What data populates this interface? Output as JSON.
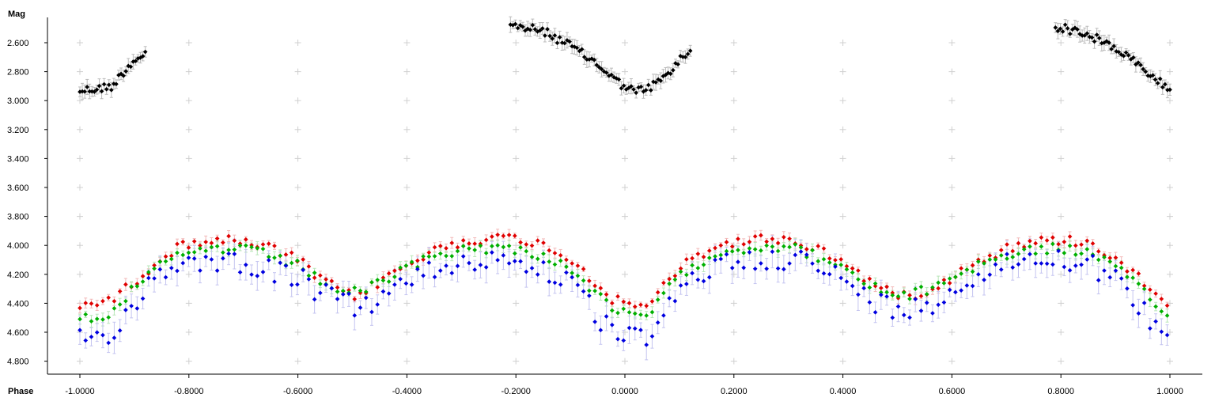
{
  "chart_data": {
    "type": "scatter",
    "title": "",
    "xlabel": "Phase",
    "ylabel": "Mag",
    "xlim": [
      -1.06,
      1.06
    ],
    "ylim": [
      4.9,
      2.47
    ],
    "y_inverted": true,
    "x_ticks": [
      -1.0,
      -0.8,
      -0.6,
      -0.4,
      -0.2,
      0.0,
      0.2,
      0.4,
      0.6,
      0.8,
      1.0
    ],
    "x_tick_labels": [
      "-1.0000",
      "-0.8000",
      "-0.6000",
      "-0.4000",
      "-0.2000",
      "0.0000",
      "0.2000",
      "0.4000",
      "0.6000",
      "0.8000",
      "1.0000"
    ],
    "y_ticks": [
      2.6,
      2.8,
      3.0,
      3.2,
      3.4,
      3.6,
      3.8,
      4.0,
      4.2,
      4.4,
      4.6,
      4.8
    ],
    "y_tick_labels": [
      "2.600",
      "2.800",
      "3.000",
      "3.200",
      "3.400",
      "3.600",
      "3.800",
      "4.000",
      "4.200",
      "4.400",
      "4.600",
      "4.800"
    ],
    "grid": "cross-markers",
    "legend": "none",
    "series": [
      {
        "color": "#000000",
        "error_color": "#bbbbbb",
        "error_bar": 0.04,
        "segments": [
          {
            "x_range": [
              -1.0,
              -0.88
            ],
            "points": [
              [
                -1.0,
                2.93
              ],
              [
                -0.97,
                2.92
              ],
              [
                -0.94,
                2.9
              ],
              [
                -0.92,
                2.8
              ],
              [
                -0.9,
                2.72
              ],
              [
                -0.88,
                2.67
              ]
            ]
          },
          {
            "x_range": [
              -0.21,
              0.12
            ],
            "points": [
              [
                -0.21,
                2.48
              ],
              [
                -0.15,
                2.52
              ],
              [
                -0.1,
                2.62
              ],
              [
                -0.05,
                2.75
              ],
              [
                -0.01,
                2.88
              ],
              [
                0.02,
                2.94
              ],
              [
                0.05,
                2.9
              ],
              [
                0.08,
                2.82
              ],
              [
                0.1,
                2.72
              ],
              [
                0.12,
                2.66
              ]
            ]
          },
          {
            "x_range": [
              0.79,
              1.0
            ],
            "points": [
              [
                0.79,
                2.49
              ],
              [
                0.83,
                2.52
              ],
              [
                0.87,
                2.58
              ],
              [
                0.91,
                2.66
              ],
              [
                0.95,
                2.78
              ],
              [
                0.98,
                2.87
              ],
              [
                1.0,
                2.93
              ]
            ]
          }
        ]
      },
      {
        "color": "#e00000",
        "error_color": "#f2b8b8",
        "error_bar": 0.03,
        "points": [
          [
            -1.0,
            4.4
          ],
          [
            -0.95,
            4.4
          ],
          [
            -0.9,
            4.25
          ],
          [
            -0.85,
            4.08
          ],
          [
            -0.8,
            3.98
          ],
          [
            -0.75,
            3.96
          ],
          [
            -0.7,
            3.98
          ],
          [
            -0.65,
            4.02
          ],
          [
            -0.6,
            4.1
          ],
          [
            -0.57,
            4.2
          ],
          [
            -0.53,
            4.3
          ],
          [
            -0.5,
            4.35
          ],
          [
            -0.47,
            4.3
          ],
          [
            -0.43,
            4.2
          ],
          [
            -0.38,
            4.1
          ],
          [
            -0.33,
            4.0
          ],
          [
            -0.28,
            3.96
          ],
          [
            -0.22,
            3.95
          ],
          [
            -0.17,
            3.97
          ],
          [
            -0.12,
            4.05
          ],
          [
            -0.08,
            4.15
          ],
          [
            -0.05,
            4.28
          ],
          [
            -0.02,
            4.38
          ],
          [
            0.02,
            4.42
          ],
          [
            0.05,
            4.38
          ],
          [
            0.08,
            4.25
          ],
          [
            0.12,
            4.1
          ],
          [
            0.17,
            4.0
          ],
          [
            0.22,
            3.97
          ],
          [
            0.27,
            3.95
          ],
          [
            0.32,
            3.98
          ],
          [
            0.37,
            4.05
          ],
          [
            0.4,
            4.12
          ],
          [
            0.44,
            4.22
          ],
          [
            0.48,
            4.32
          ],
          [
            0.52,
            4.35
          ],
          [
            0.56,
            4.3
          ],
          [
            0.6,
            4.22
          ],
          [
            0.65,
            4.1
          ],
          [
            0.7,
            4.02
          ],
          [
            0.75,
            3.98
          ],
          [
            0.8,
            3.96
          ],
          [
            0.85,
            3.98
          ],
          [
            0.9,
            4.08
          ],
          [
            0.95,
            4.25
          ],
          [
            1.0,
            4.4
          ]
        ]
      },
      {
        "color": "#00b000",
        "error_color": "#b8e6b8",
        "error_bar": 0.035,
        "points": [
          [
            -1.0,
            4.5
          ],
          [
            -0.95,
            4.48
          ],
          [
            -0.9,
            4.3
          ],
          [
            -0.85,
            4.13
          ],
          [
            -0.8,
            4.05
          ],
          [
            -0.75,
            4.02
          ],
          [
            -0.7,
            4.03
          ],
          [
            -0.65,
            4.07
          ],
          [
            -0.6,
            4.14
          ],
          [
            -0.57,
            4.22
          ],
          [
            -0.53,
            4.3
          ],
          [
            -0.5,
            4.33
          ],
          [
            -0.47,
            4.3
          ],
          [
            -0.43,
            4.22
          ],
          [
            -0.38,
            4.12
          ],
          [
            -0.33,
            4.05
          ],
          [
            -0.28,
            4.02
          ],
          [
            -0.22,
            4.02
          ],
          [
            -0.17,
            4.05
          ],
          [
            -0.12,
            4.12
          ],
          [
            -0.08,
            4.22
          ],
          [
            -0.05,
            4.35
          ],
          [
            -0.02,
            4.45
          ],
          [
            0.02,
            4.5
          ],
          [
            0.05,
            4.45
          ],
          [
            0.08,
            4.3
          ],
          [
            0.12,
            4.15
          ],
          [
            0.17,
            4.05
          ],
          [
            0.22,
            4.02
          ],
          [
            0.27,
            4.0
          ],
          [
            0.32,
            4.03
          ],
          [
            0.37,
            4.1
          ],
          [
            0.4,
            4.17
          ],
          [
            0.44,
            4.26
          ],
          [
            0.48,
            4.33
          ],
          [
            0.52,
            4.35
          ],
          [
            0.56,
            4.3
          ],
          [
            0.6,
            4.22
          ],
          [
            0.65,
            4.13
          ],
          [
            0.7,
            4.07
          ],
          [
            0.75,
            4.03
          ],
          [
            0.8,
            4.02
          ],
          [
            0.85,
            4.05
          ],
          [
            0.9,
            4.15
          ],
          [
            0.95,
            4.32
          ],
          [
            1.0,
            4.5
          ]
        ]
      },
      {
        "color": "#0000e0",
        "error_color": "#c4c4f0",
        "error_bar": 0.08,
        "points": [
          [
            -1.0,
            4.62
          ],
          [
            -0.96,
            4.65
          ],
          [
            -0.92,
            4.5
          ],
          [
            -0.88,
            4.3
          ],
          [
            -0.84,
            4.15
          ],
          [
            -0.8,
            4.1
          ],
          [
            -0.75,
            4.1
          ],
          [
            -0.7,
            4.12
          ],
          [
            -0.65,
            4.17
          ],
          [
            -0.6,
            4.22
          ],
          [
            -0.57,
            4.3
          ],
          [
            -0.53,
            4.38
          ],
          [
            -0.5,
            4.42
          ],
          [
            -0.47,
            4.4
          ],
          [
            -0.43,
            4.32
          ],
          [
            -0.38,
            4.22
          ],
          [
            -0.33,
            4.14
          ],
          [
            -0.28,
            4.1
          ],
          [
            -0.22,
            4.1
          ],
          [
            -0.17,
            4.13
          ],
          [
            -0.12,
            4.22
          ],
          [
            -0.08,
            4.35
          ],
          [
            -0.05,
            4.5
          ],
          [
            -0.02,
            4.62
          ],
          [
            0.02,
            4.65
          ],
          [
            0.05,
            4.6
          ],
          [
            0.08,
            4.45
          ],
          [
            0.12,
            4.25
          ],
          [
            0.17,
            4.13
          ],
          [
            0.22,
            4.1
          ],
          [
            0.27,
            4.08
          ],
          [
            0.32,
            4.1
          ],
          [
            0.37,
            4.17
          ],
          [
            0.4,
            4.25
          ],
          [
            0.44,
            4.35
          ],
          [
            0.48,
            4.42
          ],
          [
            0.52,
            4.45
          ],
          [
            0.56,
            4.4
          ],
          [
            0.6,
            4.3
          ],
          [
            0.65,
            4.2
          ],
          [
            0.7,
            4.12
          ],
          [
            0.75,
            4.08
          ],
          [
            0.8,
            4.08
          ],
          [
            0.85,
            4.12
          ],
          [
            0.9,
            4.25
          ],
          [
            0.95,
            4.45
          ],
          [
            1.0,
            4.62
          ]
        ]
      }
    ]
  }
}
